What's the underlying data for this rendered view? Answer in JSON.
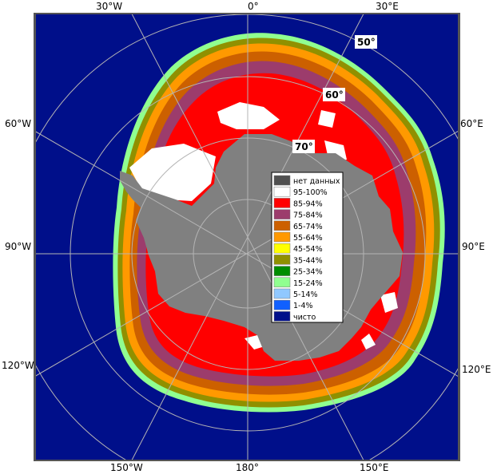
{
  "map": {
    "longitude_labels": {
      "top_30w": "30°W",
      "top_0": "0°",
      "top_30e": "30°E",
      "left_60w": "60°W",
      "right_60e": "60°E",
      "left_90w": "90°W",
      "right_90e": "90°E",
      "left_120w": "120°W",
      "right_120e": "120°E",
      "bottom_150w": "150°W",
      "bottom_180": "180°",
      "bottom_150e": "150°E"
    },
    "latitude_labels": {
      "lat50": "50°",
      "lat60": "60°",
      "lat70": "70°"
    },
    "colors": {
      "ocean": "#000f8a",
      "land": "#808080",
      "frame": "#555555"
    }
  },
  "legend": {
    "items": [
      {
        "label": "нет данных",
        "color": "#505050"
      },
      {
        "label": "95-100%",
        "color": "#ffffff"
      },
      {
        "label": "85-94%",
        "color": "#ff0000"
      },
      {
        "label": "75-84%",
        "color": "#9c3c6c"
      },
      {
        "label": "65-74%",
        "color": "#cc6000"
      },
      {
        "label": "55-64%",
        "color": "#ff9900"
      },
      {
        "label": "45-54%",
        "color": "#ffff00"
      },
      {
        "label": "35-44%",
        "color": "#909000"
      },
      {
        "label": "25-34%",
        "color": "#008c00"
      },
      {
        "label": "15-24%",
        "color": "#90ff90"
      },
      {
        "label": "5-14%",
        "color": "#90c8ff"
      },
      {
        "label": "1-4%",
        "color": "#1060ff"
      },
      {
        "label": "чисто",
        "color": "#000f8a"
      }
    ]
  }
}
